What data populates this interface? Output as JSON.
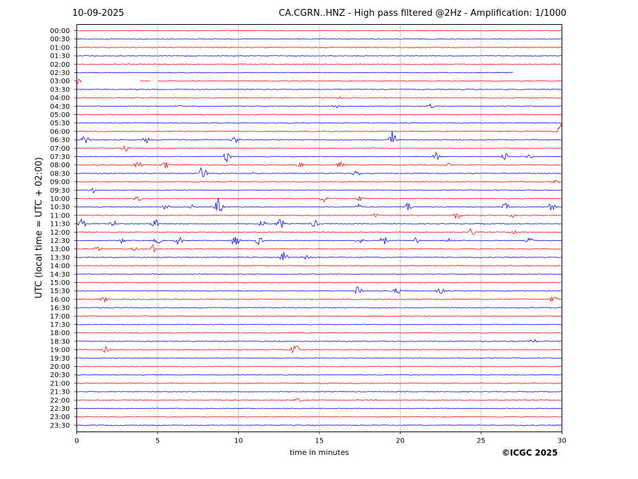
{
  "header": {
    "date": "10-09-2025",
    "title": "CA.CGRN..HNZ - High pass filtered @2Hz - Amplification: 1/1000"
  },
  "footer": {
    "copyright": "©ICGC 2025"
  },
  "chart_data": {
    "type": "line",
    "title": "CA.CGRN..HNZ - High pass filtered @2Hz - Amplification: 1/1000",
    "xlabel": "time in minutes",
    "ylabel": "UTC (local time = UTC + 02:00)",
    "xlim": [
      0,
      30
    ],
    "x_ticks": [
      0,
      5,
      10,
      15,
      20,
      25,
      30
    ],
    "x_grid": "dotted vertical lines at 5, 10, 15, 20, 25",
    "trace_colors": [
      "#ff0000",
      "#0000ff"
    ],
    "color_pattern": "alternating red (on the hour) and blue (half hour)",
    "y_tick_labels": [
      "00:00",
      "00:30",
      "01:00",
      "01:30",
      "02:00",
      "02:30",
      "03:00",
      "03:30",
      "04:00",
      "04:30",
      "05:00",
      "05:30",
      "06:00",
      "06:30",
      "07:00",
      "07:30",
      "08:00",
      "08:30",
      "09:00",
      "09:30",
      "10:00",
      "10:30",
      "11:00",
      "11:30",
      "12:00",
      "12:30",
      "13:00",
      "13:30",
      "14:00",
      "14:30",
      "15:00",
      "15:30",
      "16:00",
      "16:30",
      "17:00",
      "17:30",
      "18:00",
      "18:30",
      "19:00",
      "19:30",
      "20:00",
      "20:30",
      "21:00",
      "21:30",
      "22:00",
      "22:30",
      "23:00",
      "23:30"
    ],
    "data_gap": {
      "row": "03:00",
      "gaps_minutes": [
        [
          0.3,
          3.9
        ],
        [
          4.6,
          5.0
        ]
      ]
    },
    "trace_end_minute": {
      "02:30": 27
    },
    "bursts": [
      {
        "row": "03:00",
        "minute": 0.1,
        "amp": 0.5
      },
      {
        "row": "04:00",
        "minute": 16.3,
        "amp": 0.3
      },
      {
        "row": "04:30",
        "minute": 6.3,
        "amp": 0.2
      },
      {
        "row": "04:30",
        "minute": 16.0,
        "amp": 0.4
      },
      {
        "row": "04:30",
        "minute": 21.9,
        "amp": 0.5
      },
      {
        "row": "06:00",
        "minute": 29.9,
        "amp": 1.4
      },
      {
        "row": "06:30",
        "minute": 0.5,
        "amp": 0.7
      },
      {
        "row": "06:30",
        "minute": 4.3,
        "amp": 0.6
      },
      {
        "row": "06:30",
        "minute": 9.8,
        "amp": 0.8
      },
      {
        "row": "06:30",
        "minute": 19.5,
        "amp": 1.6
      },
      {
        "row": "07:00",
        "minute": 3.0,
        "amp": 0.7
      },
      {
        "row": "07:30",
        "minute": 9.3,
        "amp": 1.0
      },
      {
        "row": "07:30",
        "minute": 22.3,
        "amp": 0.9
      },
      {
        "row": "07:30",
        "minute": 26.5,
        "amp": 0.8
      },
      {
        "row": "07:30",
        "minute": 28.0,
        "amp": 0.4
      },
      {
        "row": "08:00",
        "minute": 3.8,
        "amp": 0.6
      },
      {
        "row": "08:00",
        "minute": 5.5,
        "amp": 0.8
      },
      {
        "row": "08:00",
        "minute": 13.8,
        "amp": 0.5
      },
      {
        "row": "08:00",
        "minute": 16.3,
        "amp": 0.5
      },
      {
        "row": "08:00",
        "minute": 23.0,
        "amp": 0.4
      },
      {
        "row": "08:30",
        "minute": 7.8,
        "amp": 1.5
      },
      {
        "row": "08:30",
        "minute": 11.0,
        "amp": 0.4
      },
      {
        "row": "08:30",
        "minute": 17.3,
        "amp": 0.6
      },
      {
        "row": "09:00",
        "minute": 29.6,
        "amp": 0.4
      },
      {
        "row": "09:30",
        "minute": 1.0,
        "amp": 0.7
      },
      {
        "row": "10:00",
        "minute": 3.8,
        "amp": 0.5
      },
      {
        "row": "10:00",
        "minute": 15.3,
        "amp": 0.7
      },
      {
        "row": "10:00",
        "minute": 17.5,
        "amp": 0.5
      },
      {
        "row": "10:30",
        "minute": 5.5,
        "amp": 0.5
      },
      {
        "row": "10:30",
        "minute": 7.2,
        "amp": 0.4
      },
      {
        "row": "10:30",
        "minute": 8.8,
        "amp": 1.6
      },
      {
        "row": "10:30",
        "minute": 17.5,
        "amp": 0.6
      },
      {
        "row": "10:30",
        "minute": 20.5,
        "amp": 0.8
      },
      {
        "row": "10:30",
        "minute": 26.5,
        "amp": 0.7
      },
      {
        "row": "10:30",
        "minute": 29.4,
        "amp": 0.8
      },
      {
        "row": "11:00",
        "minute": 18.5,
        "amp": 0.6
      },
      {
        "row": "11:00",
        "minute": 23.5,
        "amp": 0.8
      },
      {
        "row": "11:00",
        "minute": 27.0,
        "amp": 0.4
      },
      {
        "row": "11:30",
        "minute": 0.3,
        "amp": 1.0
      },
      {
        "row": "11:30",
        "minute": 2.3,
        "amp": 0.6
      },
      {
        "row": "11:30",
        "minute": 4.8,
        "amp": 1.0
      },
      {
        "row": "11:30",
        "minute": 11.5,
        "amp": 0.6
      },
      {
        "row": "11:30",
        "minute": 12.6,
        "amp": 1.0
      },
      {
        "row": "11:30",
        "minute": 14.7,
        "amp": 0.7
      },
      {
        "row": "12:00",
        "minute": 24.4,
        "amp": 0.8
      },
      {
        "row": "12:00",
        "minute": 27.0,
        "amp": 0.5
      },
      {
        "row": "12:30",
        "minute": 2.8,
        "amp": 0.5
      },
      {
        "row": "12:30",
        "minute": 5.0,
        "amp": 0.6
      },
      {
        "row": "12:30",
        "minute": 6.3,
        "amp": 0.8
      },
      {
        "row": "12:30",
        "minute": 9.8,
        "amp": 1.0
      },
      {
        "row": "12:30",
        "minute": 11.3,
        "amp": 0.8
      },
      {
        "row": "12:30",
        "minute": 17.5,
        "amp": 0.6
      },
      {
        "row": "12:30",
        "minute": 19.0,
        "amp": 0.8
      },
      {
        "row": "12:30",
        "minute": 21.0,
        "amp": 0.7
      },
      {
        "row": "12:30",
        "minute": 23.0,
        "amp": 0.4
      },
      {
        "row": "12:30",
        "minute": 28.0,
        "amp": 0.5
      },
      {
        "row": "13:00",
        "minute": 1.3,
        "amp": 0.5
      },
      {
        "row": "13:00",
        "minute": 3.6,
        "amp": 0.4
      },
      {
        "row": "13:00",
        "minute": 4.7,
        "amp": 0.8
      },
      {
        "row": "13:30",
        "minute": 12.8,
        "amp": 1.0
      },
      {
        "row": "13:30",
        "minute": 14.2,
        "amp": 0.4
      },
      {
        "row": "15:30",
        "minute": 17.4,
        "amp": 0.9
      },
      {
        "row": "15:30",
        "minute": 19.8,
        "amp": 0.6
      },
      {
        "row": "15:30",
        "minute": 22.5,
        "amp": 0.6
      },
      {
        "row": "16:00",
        "minute": 1.7,
        "amp": 0.5
      },
      {
        "row": "16:00",
        "minute": 29.5,
        "amp": 0.7
      },
      {
        "row": "18:30",
        "minute": 28.2,
        "amp": 0.5
      },
      {
        "row": "19:00",
        "minute": 1.8,
        "amp": 0.6
      },
      {
        "row": "19:00",
        "minute": 13.5,
        "amp": 1.2
      },
      {
        "row": "22:00",
        "minute": 13.7,
        "amp": 0.4
      }
    ]
  }
}
